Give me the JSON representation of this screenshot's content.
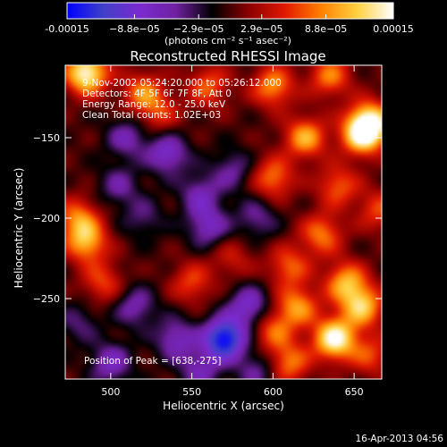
{
  "chart_data": {
    "type": "heatmap",
    "title": "Reconstructed RHESSI Image",
    "xlabel": "Heliocentric X (arcsec)",
    "ylabel": "Heliocentric Y (arcsec)",
    "xlim": [
      472,
      667
    ],
    "ylim": [
      -300,
      -105
    ],
    "xticks": [
      500,
      550,
      600,
      650
    ],
    "yticks": [
      -150,
      -200,
      -250
    ],
    "colorbar": {
      "ticks": [
        "-0.00015",
        "−8.8e−05",
        "−2.9e−05",
        "2.9e−05",
        "8.8e−05",
        "0.00015"
      ],
      "tick_values": [
        -0.00015,
        -8.8e-05,
        -2.9e-05,
        2.9e-05,
        8.8e-05,
        0.00015
      ],
      "range": [
        -0.00015,
        0.00015
      ],
      "unit_label": "(photons cm⁻² s⁻¹ asec⁻²)"
    },
    "annotations": [
      "9-Nov-2002 05:24:20.000 to 05:26:12.000",
      "Detectors: 4F 5F 6F 7F 8F, Att 0",
      "Energy Range: 12.0 - 25.0 keV",
      "Clean     Total counts: 1.02E+03"
    ],
    "peak_label": "Position of Peak = [638,-275]",
    "peak": [
      638,
      -275
    ],
    "colors": {
      "scale": [
        "#0000ff",
        "#4040c8",
        "#7a2bd0",
        "#7020a0",
        "#000000",
        "#8a0000",
        "#e01800",
        "#ff8000",
        "#ffd040",
        "#ffffff"
      ]
    },
    "blobs": [
      {
        "x": 485,
        "y": -110,
        "v": 0.00015
      },
      {
        "x": 520,
        "y": -122,
        "v": 8e-05
      },
      {
        "x": 560,
        "y": -118,
        "v": 7e-05
      },
      {
        "x": 600,
        "y": -118,
        "v": 9e-05
      },
      {
        "x": 635,
        "y": -112,
        "v": 8e-05
      },
      {
        "x": 660,
        "y": -140,
        "v": 0.00012
      },
      {
        "x": 655,
        "y": -148,
        "v": 0.00013
      },
      {
        "x": 620,
        "y": -150,
        "v": 0.0001
      },
      {
        "x": 600,
        "y": -175,
        "v": 8e-05
      },
      {
        "x": 640,
        "y": -180,
        "v": 7e-05
      },
      {
        "x": 665,
        "y": -195,
        "v": 6e-05
      },
      {
        "x": 630,
        "y": -210,
        "v": 8e-05
      },
      {
        "x": 610,
        "y": -230,
        "v": 7e-05
      },
      {
        "x": 645,
        "y": -240,
        "v": 0.0001
      },
      {
        "x": 655,
        "y": -255,
        "v": 0.00011
      },
      {
        "x": 615,
        "y": -255,
        "v": 9e-05
      },
      {
        "x": 600,
        "y": -270,
        "v": 7e-05
      },
      {
        "x": 638,
        "y": -275,
        "v": 0.00015
      },
      {
        "x": 610,
        "y": -290,
        "v": 8e-05
      },
      {
        "x": 660,
        "y": -285,
        "v": 6e-05
      },
      {
        "x": 480,
        "y": -200,
        "v": 8e-05
      },
      {
        "x": 485,
        "y": -215,
        "v": 0.0001
      },
      {
        "x": 495,
        "y": -240,
        "v": 6e-05
      },
      {
        "x": 550,
        "y": -240,
        "v": 6e-05
      },
      {
        "x": 575,
        "y": -225,
        "v": 4e-05
      },
      {
        "x": 530,
        "y": -135,
        "v": 5e-05
      },
      {
        "x": 510,
        "y": -150,
        "v": -6e-05
      },
      {
        "x": 535,
        "y": -160,
        "v": -8e-05
      },
      {
        "x": 505,
        "y": -180,
        "v": -5e-05
      },
      {
        "x": 555,
        "y": -185,
        "v": -6e-05
      },
      {
        "x": 575,
        "y": -170,
        "v": -5e-05
      },
      {
        "x": 520,
        "y": -200,
        "v": -4e-05
      },
      {
        "x": 560,
        "y": -205,
        "v": -7e-05
      },
      {
        "x": 590,
        "y": -200,
        "v": -5e-05
      },
      {
        "x": 515,
        "y": -255,
        "v": -6e-05
      },
      {
        "x": 540,
        "y": -275,
        "v": -7e-05
      },
      {
        "x": 570,
        "y": -275,
        "v": -0.00015
      },
      {
        "x": 585,
        "y": -255,
        "v": -8e-05
      },
      {
        "x": 500,
        "y": -290,
        "v": -7e-05
      },
      {
        "x": 555,
        "y": -295,
        "v": -6e-05
      },
      {
        "x": 590,
        "y": -295,
        "v": -5e-05
      },
      {
        "x": 480,
        "y": -265,
        "v": -4e-05
      }
    ]
  },
  "footer": {
    "timestamp": "16-Apr-2013 04:56"
  }
}
